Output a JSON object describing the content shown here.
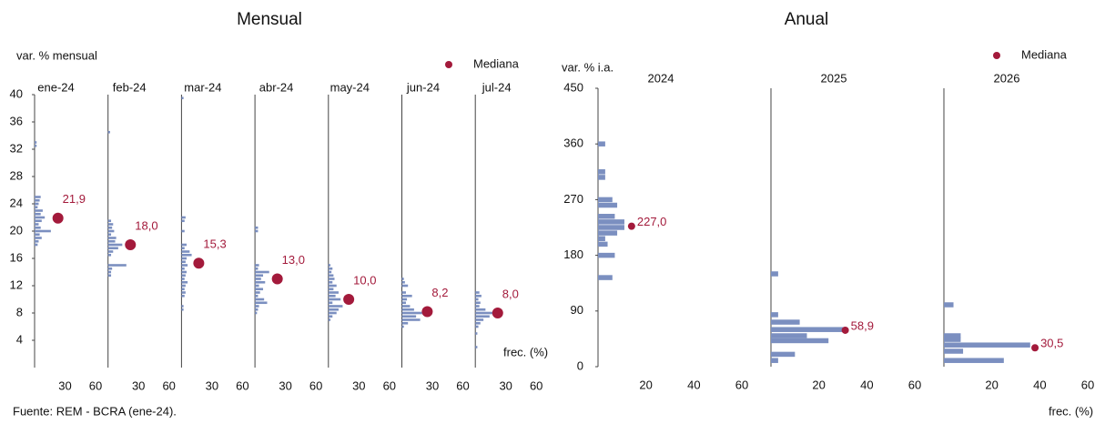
{
  "chart_data": [
    {
      "type": "hbar",
      "title": "Mensual",
      "ylabel": "var. % mensual",
      "xlabel": "frec. (%)",
      "legend": "Mediana",
      "source": "Fuente: REM - BCRA (ene-24).",
      "bar_color": "#7b8fc0",
      "median_color": "#a31a3b",
      "ylim": [
        0,
        40
      ],
      "yticks": [
        4,
        8,
        12,
        16,
        20,
        24,
        28,
        32,
        36,
        40
      ],
      "xlim": [
        0,
        60
      ],
      "xticks": [
        30,
        60
      ],
      "panels": [
        {
          "title": "ene-24",
          "y": [
            33,
            32.5,
            25,
            24.5,
            24,
            23.5,
            23,
            22.5,
            22,
            21.5,
            21,
            20.5,
            20,
            19.5,
            19,
            18.5,
            18
          ],
          "values": [
            2,
            2,
            6,
            5,
            4,
            3,
            8,
            6,
            10,
            7,
            4,
            6,
            16,
            5,
            7,
            4,
            3
          ],
          "median": 21.9,
          "median_label": "21,9",
          "median_x": 23
        },
        {
          "title": "feb-24",
          "y": [
            34.5,
            21.5,
            21,
            20.5,
            20,
            19.5,
            19,
            18.5,
            18,
            17.5,
            17,
            16.5,
            15,
            14.5,
            14,
            13.5
          ],
          "values": [
            2,
            3,
            5,
            4,
            6,
            3,
            8,
            7,
            14,
            10,
            5,
            3,
            18,
            4,
            3,
            3
          ],
          "median": 18.0,
          "median_label": "18,0",
          "median_x": 22
        },
        {
          "title": "mar-24",
          "y": [
            39.5,
            22,
            21.5,
            20,
            18,
            17.5,
            17,
            16.5,
            16,
            15.5,
            15,
            14.5,
            14,
            13.5,
            13,
            12.5,
            12,
            11.5,
            11,
            10.5,
            9,
            8.5
          ],
          "values": [
            2,
            4,
            3,
            3,
            5,
            3,
            8,
            10,
            5,
            4,
            6,
            3,
            5,
            4,
            3,
            6,
            4,
            3,
            4,
            3,
            2,
            2
          ],
          "median": 15.3,
          "median_label": "15,3",
          "median_x": 17
        },
        {
          "title": "abr-24",
          "y": [
            20.5,
            20,
            15,
            14.5,
            14,
            13.5,
            13,
            12.5,
            12,
            11.5,
            11,
            10.5,
            10,
            9.5,
            9,
            8.5,
            8
          ],
          "values": [
            3,
            3,
            4,
            3,
            14,
            8,
            6,
            10,
            4,
            8,
            5,
            3,
            9,
            12,
            4,
            3,
            2
          ],
          "median": 13.0,
          "median_label": "13,0",
          "median_x": 22
        },
        {
          "title": "may-24",
          "y": [
            15,
            14.5,
            14,
            13.5,
            13,
            12.5,
            12,
            11.5,
            11,
            10.5,
            10,
            9.5,
            9,
            8.5,
            8,
            7.5,
            7
          ],
          "values": [
            2,
            4,
            3,
            5,
            6,
            4,
            8,
            5,
            10,
            7,
            12,
            4,
            14,
            10,
            8,
            4,
            2
          ],
          "median": 10.0,
          "median_label": "10,0",
          "median_x": 20
        },
        {
          "title": "jun-24",
          "y": [
            13,
            12.5,
            12,
            11,
            10.5,
            10,
            9.5,
            9,
            8.5,
            8,
            7.5,
            7,
            6.5,
            6
          ],
          "values": [
            2,
            3,
            6,
            4,
            10,
            5,
            4,
            8,
            12,
            20,
            14,
            18,
            6,
            2
          ],
          "median": 8.2,
          "median_label": "8,2",
          "median_x": 25
        },
        {
          "title": "jul-24",
          "y": [
            11,
            10.5,
            10,
            9.5,
            9,
            8.5,
            8,
            7.5,
            7,
            6.5,
            6,
            5,
            3
          ],
          "values": [
            4,
            6,
            3,
            5,
            4,
            10,
            18,
            14,
            8,
            5,
            3,
            2,
            2
          ],
          "median": 8.0,
          "median_label": "8,0",
          "median_x": 22
        }
      ]
    },
    {
      "type": "hbar",
      "title": "Anual",
      "ylabel": "var. % i.a.",
      "xlabel": "frec. (%)",
      "legend": "Mediana",
      "bar_color": "#7b8fc0",
      "median_color": "#a31a3b",
      "ylim": [
        0,
        450
      ],
      "yticks": [
        0,
        90,
        180,
        270,
        360,
        450
      ],
      "xlim": [
        0,
        60
      ],
      "xticks": [
        20,
        40,
        60
      ],
      "panels": [
        {
          "title": "2024",
          "y": [
            360,
            315,
            306,
            270,
            261,
            243,
            234,
            225,
            216,
            207,
            198,
            180,
            144
          ],
          "values": [
            3,
            3,
            3,
            6,
            8,
            7,
            11,
            11,
            8,
            3,
            4,
            7,
            6
          ],
          "median": 227.0,
          "median_label": "227,0",
          "median_x": 14
        },
        {
          "title": "2025",
          "y": [
            150,
            84,
            72,
            60,
            50,
            42,
            20,
            10
          ],
          "values": [
            3,
            3,
            12,
            31,
            15,
            24,
            10,
            3
          ],
          "median": 58.9,
          "median_label": "58,9",
          "median_x": 31
        },
        {
          "title": "2026",
          "y": [
            100,
            50,
            44,
            35,
            25,
            10
          ],
          "values": [
            4,
            7,
            7,
            36,
            8,
            25
          ],
          "median": 30.5,
          "median_label": "30,5",
          "median_x": 38
        }
      ]
    }
  ]
}
